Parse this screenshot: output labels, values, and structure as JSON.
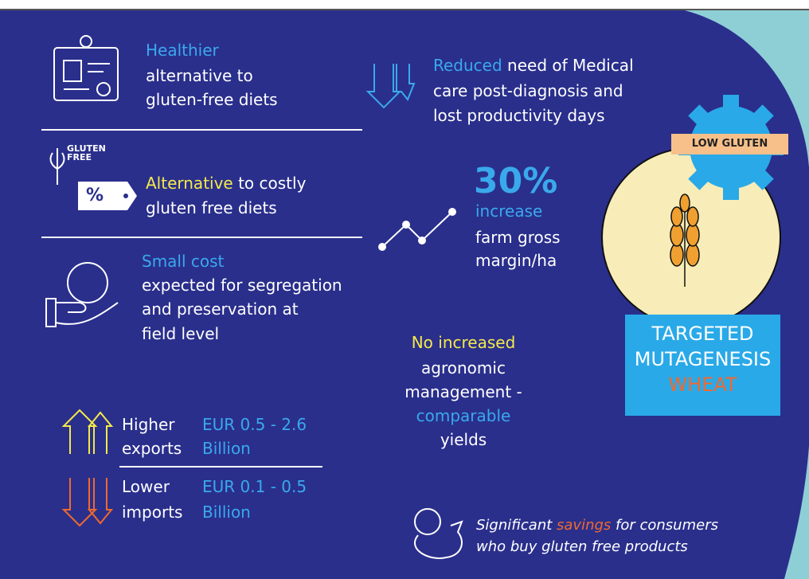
{
  "health": {
    "highlight": "Healthier",
    "lines": [
      "alternative to",
      "gluten-free diets"
    ]
  },
  "gluten_free": {
    "icon_label": [
      "GLUTEN",
      "FREE"
    ],
    "tag": "%",
    "highlight": "Alternative",
    "rest": " to costly",
    "line2": "gluten free diets"
  },
  "cost": {
    "highlight": "Small cost",
    "lines": [
      "expected for segregation",
      "and preservation at",
      "field level"
    ]
  },
  "trade": [
    {
      "label": [
        "Higher",
        "exports"
      ],
      "value": [
        "EUR 0.5 - 2.6",
        "Billion"
      ]
    },
    {
      "label": [
        "Lower",
        "imports"
      ],
      "value": [
        "EUR 0.1 - 0.5",
        "Billion"
      ]
    }
  ],
  "medical": {
    "highlight": "Reduced",
    "rest": " need of Medical",
    "lines": [
      "care post-diagnosis and",
      "lost productivity days"
    ]
  },
  "margin": {
    "figure": "30%",
    "highlight": "increase",
    "lines": [
      "farm gross",
      "margin/ha"
    ]
  },
  "agronomic": {
    "highlight": "No increased",
    "lines": [
      "agronomic",
      "management -"
    ],
    "highlight2": "comparable",
    "last": "yields"
  },
  "savings": {
    "pre": "Significant ",
    "highlight": "savings",
    "post": " for consumers",
    "line2": "who buy gluten free products"
  },
  "wheat": {
    "badge": "LOW GLUTEN",
    "title": [
      "TARGETED",
      "MUTAGENESIS"
    ],
    "highlight": "WHEAT"
  }
}
